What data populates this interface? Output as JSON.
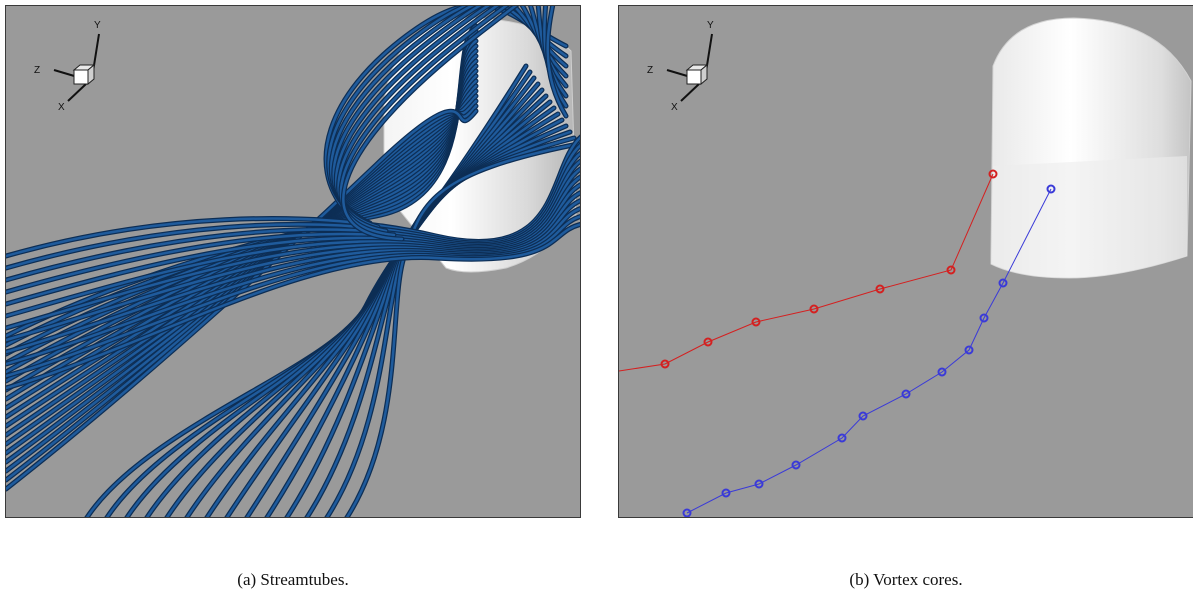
{
  "panels": [
    {
      "id": "a",
      "caption": "(a) Streamtubes.",
      "axes": {
        "y": "Y",
        "z": "Z",
        "x": "X"
      },
      "background": "#9a9a9a",
      "tube_color": "#1f5b9c"
    },
    {
      "id": "b",
      "caption": "(b) Vortex cores.",
      "axes": {
        "y": "Y",
        "z": "Z",
        "x": "X"
      },
      "background": "#9a9a9a",
      "core_colors": {
        "red": "#d42020",
        "blue": "#3a3ad8"
      }
    }
  ]
}
